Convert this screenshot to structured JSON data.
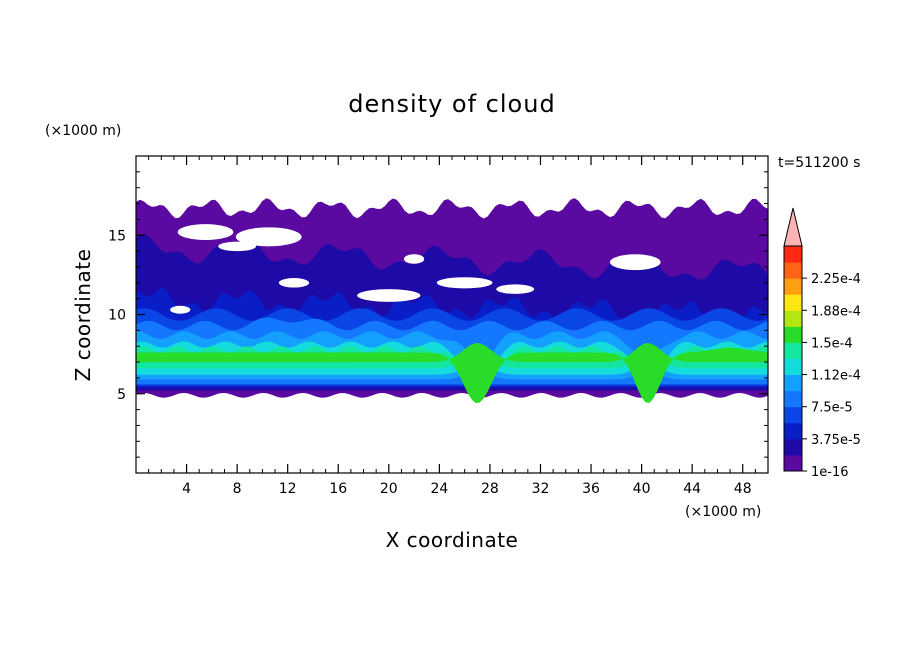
{
  "chart_data": {
    "type": "heatmap",
    "title": "density of cloud",
    "xlabel": "X coordinate",
    "ylabel": "Z coordinate",
    "x_unit": "(×1000 m)",
    "y_unit": "(×1000 m)",
    "time_label": "t=511200 s",
    "xlim": [
      0,
      50
    ],
    "ylim": [
      0,
      20
    ],
    "x_ticks": [
      4,
      8,
      12,
      16,
      20,
      24,
      28,
      32,
      36,
      40,
      44,
      48
    ],
    "y_ticks": [
      5,
      10,
      15
    ],
    "colorbar": {
      "labels": [
        "1e-16",
        "3.75e-5",
        "7.5e-5",
        "1.12e-4",
        "1.5e-4",
        "1.88e-4",
        "2.25e-4"
      ],
      "levels": [
        1e-16,
        1.875e-05,
        3.75e-05,
        5.625e-05,
        7.5e-05,
        9.375e-05,
        0.0001125,
        0.00013125,
        0.00015,
        0.00016875,
        0.0001875,
        0.00020625,
        0.000225,
        0.00024375
      ],
      "colors": [
        "#5a0aa0",
        "#1e0aa6",
        "#0a1ec8",
        "#0a46e6",
        "#1478ff",
        "#14a0ff",
        "#14dcdc",
        "#14e6a0",
        "#28dc28",
        "#b4e614",
        "#ffe614",
        "#ffa014",
        "#ff6414",
        "#ff2814"
      ],
      "over_color": "#ffb4b4"
    },
    "layers": [
      {
        "level": 0,
        "x": [
          0,
          50
        ],
        "z_bottom": [
          5.0,
          5.0
        ],
        "z_top": [
          17.0,
          16.5
        ]
      },
      {
        "level": 1,
        "x": [
          0,
          50
        ],
        "z_bottom": [
          5.2,
          5.2
        ],
        "z_top": [
          14.0,
          12.5
        ]
      },
      {
        "level": 2,
        "x": [
          0,
          50
        ],
        "z_bottom": [
          5.4,
          5.4
        ],
        "z_top": [
          11.0,
          10.0
        ]
      },
      {
        "level": 5,
        "x": [
          0,
          50
        ],
        "z_bottom": [
          5.8,
          5.8
        ],
        "z_top": [
          8.5,
          8.3
        ]
      },
      {
        "level": 6,
        "x": [
          0,
          50
        ],
        "z_bottom": [
          6.2,
          6.2
        ],
        "z_top": [
          7.8,
          7.9
        ]
      }
    ]
  }
}
